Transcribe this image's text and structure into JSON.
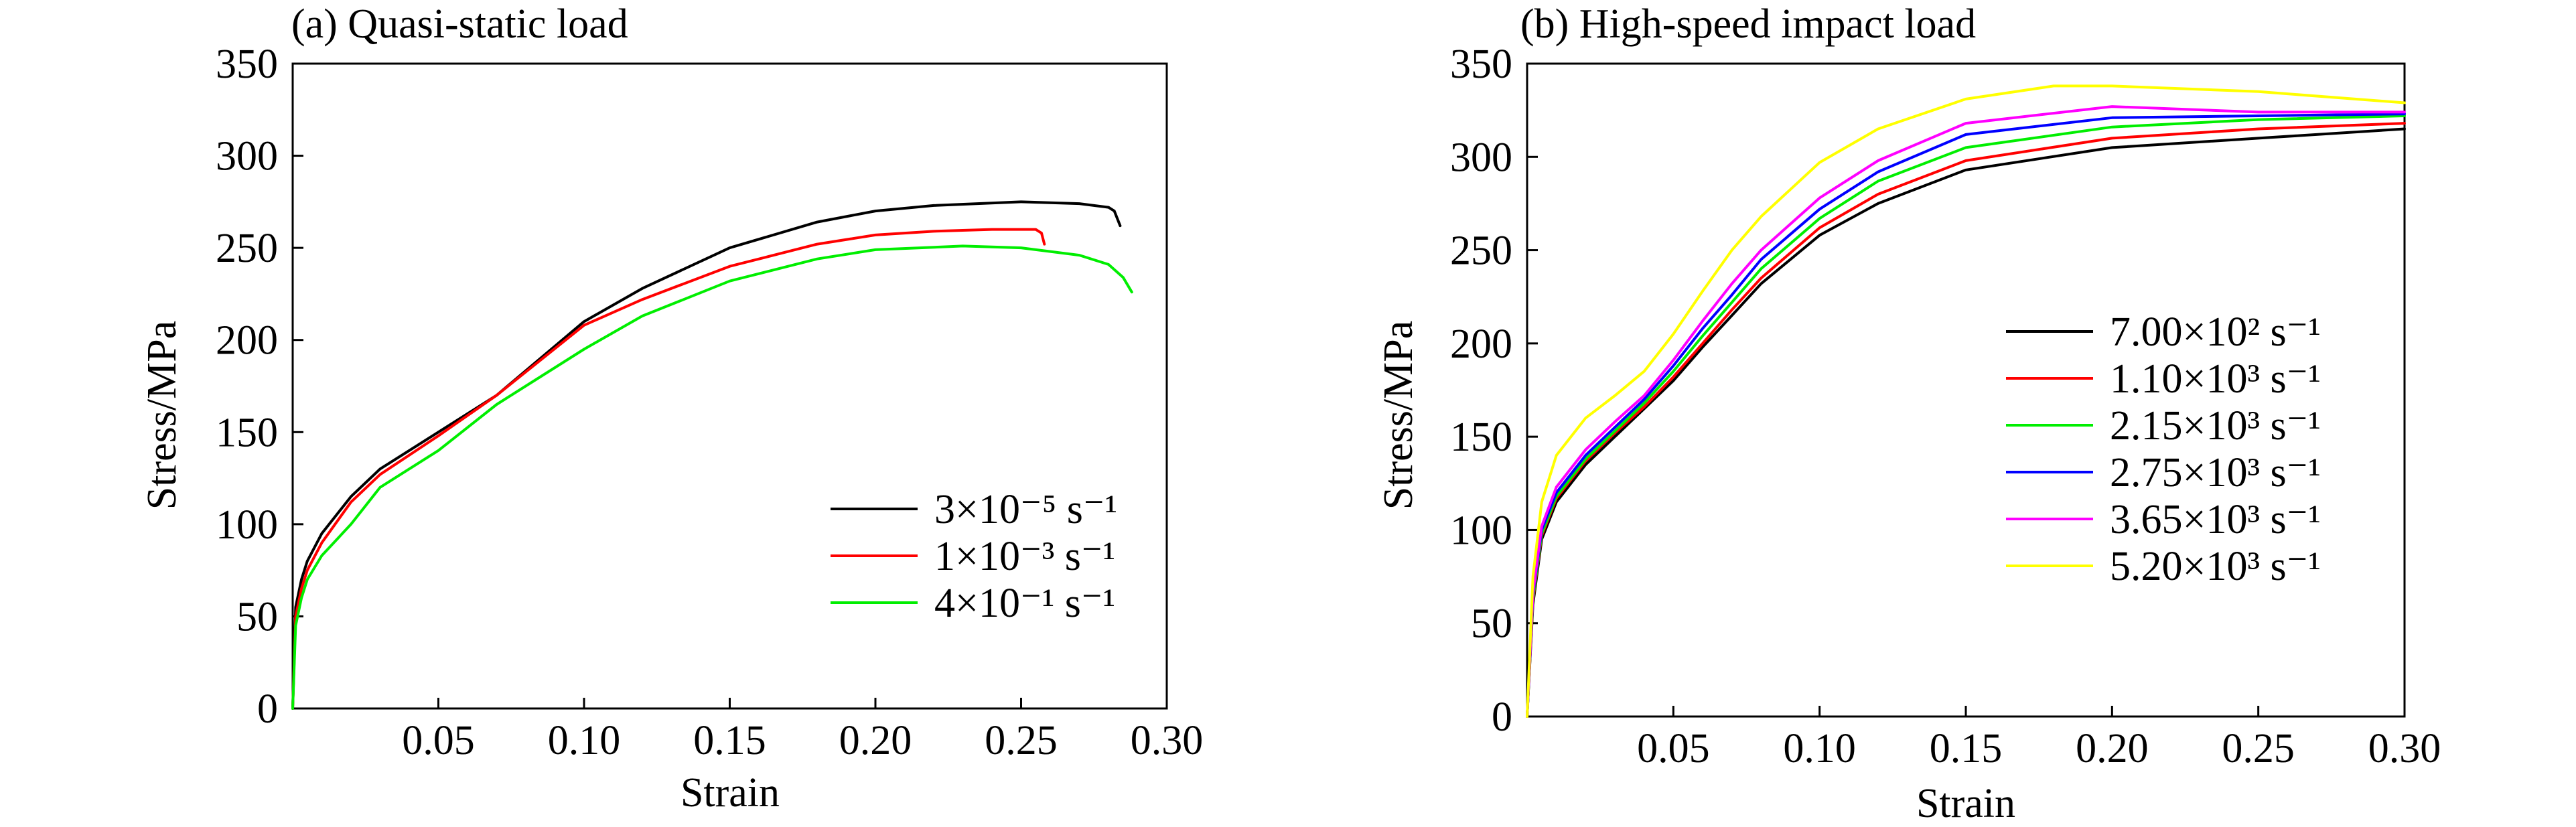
{
  "chart_data": [
    {
      "type": "line",
      "title": "(a) Quasi-static load",
      "xlabel": "Strain",
      "ylabel": "Stress/MPa",
      "xlim": [
        0,
        0.3
      ],
      "ylim": [
        0,
        350
      ],
      "xticks": [
        "0.05",
        "0.10",
        "0.15",
        "0.20",
        "0.25",
        "0.30"
      ],
      "xtick_values": [
        0.05,
        0.1,
        0.15,
        0.2,
        0.25,
        0.3
      ],
      "yticks": [
        "0",
        "50",
        "100",
        "150",
        "200",
        "250",
        "300",
        "350"
      ],
      "ytick_values": [
        0,
        50,
        100,
        150,
        200,
        250,
        300,
        350
      ],
      "grid": false,
      "legend_position": "lower-right",
      "series": [
        {
          "name": "3×10⁻⁵ s⁻¹",
          "color": "#000000",
          "x": [
            0,
            0.001,
            0.003,
            0.005,
            0.01,
            0.02,
            0.03,
            0.05,
            0.07,
            0.1,
            0.12,
            0.15,
            0.18,
            0.2,
            0.22,
            0.25,
            0.27,
            0.28,
            0.282,
            0.284
          ],
          "y": [
            0,
            55,
            70,
            80,
            95,
            115,
            130,
            150,
            170,
            210,
            228,
            250,
            264,
            270,
            273,
            275,
            274,
            272,
            270,
            262
          ]
        },
        {
          "name": "1×10⁻³ s⁻¹",
          "color": "#ff0000",
          "x": [
            0,
            0.001,
            0.003,
            0.005,
            0.01,
            0.02,
            0.03,
            0.05,
            0.07,
            0.1,
            0.12,
            0.15,
            0.18,
            0.2,
            0.22,
            0.24,
            0.255,
            0.257,
            0.258
          ],
          "y": [
            0,
            50,
            65,
            75,
            90,
            112,
            127,
            148,
            170,
            208,
            222,
            240,
            252,
            257,
            259,
            260,
            260,
            258,
            252
          ]
        },
        {
          "name": "4×10⁻¹ s⁻¹",
          "color": "#00ee00",
          "x": [
            0,
            0.001,
            0.003,
            0.005,
            0.01,
            0.02,
            0.03,
            0.05,
            0.07,
            0.1,
            0.12,
            0.15,
            0.18,
            0.2,
            0.23,
            0.25,
            0.27,
            0.28,
            0.285,
            0.288
          ],
          "y": [
            0,
            45,
            60,
            70,
            83,
            100,
            120,
            140,
            165,
            195,
            213,
            232,
            244,
            249,
            251,
            250,
            246,
            241,
            234,
            226
          ]
        }
      ]
    },
    {
      "type": "line",
      "title": "(b) High-speed impact load",
      "xlabel": "Strain",
      "ylabel": "Stress/MPa",
      "xlim": [
        0,
        0.3
      ],
      "ylim": [
        0,
        350
      ],
      "xticks": [
        "0.05",
        "0.10",
        "0.15",
        "0.20",
        "0.25",
        "0.30"
      ],
      "xtick_values": [
        0.05,
        0.1,
        0.15,
        0.2,
        0.25,
        0.3
      ],
      "yticks": [
        "0",
        "50",
        "100",
        "150",
        "200",
        "250",
        "300",
        "350"
      ],
      "ytick_values": [
        0,
        50,
        100,
        150,
        200,
        250,
        300,
        350
      ],
      "grid": false,
      "legend_position": "right",
      "series": [
        {
          "name": "7.00×10² s⁻¹",
          "color": "#000000",
          "x": [
            0,
            0.002,
            0.005,
            0.01,
            0.02,
            0.03,
            0.04,
            0.05,
            0.06,
            0.07,
            0.08,
            0.1,
            0.12,
            0.15,
            0.2,
            0.25,
            0.3
          ],
          "y": [
            0,
            60,
            95,
            115,
            135,
            150,
            165,
            180,
            198,
            215,
            232,
            258,
            275,
            293,
            305,
            310,
            315
          ]
        },
        {
          "name": "1.10×10³ s⁻¹",
          "color": "#ff0000",
          "x": [
            0,
            0.002,
            0.005,
            0.01,
            0.02,
            0.03,
            0.04,
            0.05,
            0.06,
            0.07,
            0.08,
            0.1,
            0.12,
            0.15,
            0.2,
            0.25,
            0.3
          ],
          "y": [
            0,
            62,
            97,
            117,
            137,
            152,
            166,
            182,
            200,
            218,
            235,
            262,
            280,
            298,
            310,
            315,
            318
          ]
        },
        {
          "name": "2.15×10³ s⁻¹",
          "color": "#00ee00",
          "x": [
            0,
            0.002,
            0.005,
            0.01,
            0.02,
            0.03,
            0.04,
            0.05,
            0.06,
            0.07,
            0.08,
            0.1,
            0.12,
            0.15,
            0.2,
            0.25,
            0.3
          ],
          "y": [
            0,
            63,
            98,
            118,
            138,
            153,
            168,
            185,
            204,
            222,
            240,
            267,
            287,
            305,
            316,
            320,
            322
          ]
        },
        {
          "name": "2.75×10³ s⁻¹",
          "color": "#0000ff",
          "x": [
            0,
            0.002,
            0.005,
            0.01,
            0.02,
            0.03,
            0.04,
            0.05,
            0.06,
            0.07,
            0.08,
            0.1,
            0.12,
            0.15,
            0.2,
            0.25,
            0.3
          ],
          "y": [
            0,
            65,
            100,
            120,
            140,
            155,
            170,
            188,
            208,
            226,
            245,
            272,
            292,
            312,
            321,
            322,
            323
          ]
        },
        {
          "name": "3.65×10³ s⁻¹",
          "color": "#ff00ff",
          "x": [
            0,
            0.002,
            0.005,
            0.01,
            0.02,
            0.03,
            0.04,
            0.05,
            0.06,
            0.07,
            0.08,
            0.1,
            0.12,
            0.15,
            0.2,
            0.25,
            0.3
          ],
          "y": [
            0,
            66,
            102,
            123,
            143,
            158,
            172,
            191,
            212,
            232,
            250,
            278,
            298,
            318,
            327,
            324,
            324
          ]
        },
        {
          "name": "5.20×10³ s⁻¹",
          "color": "#ffff00",
          "x": [
            0,
            0.002,
            0.005,
            0.01,
            0.02,
            0.03,
            0.04,
            0.05,
            0.06,
            0.07,
            0.08,
            0.1,
            0.12,
            0.15,
            0.18,
            0.2,
            0.25,
            0.3
          ],
          "y": [
            0,
            75,
            115,
            140,
            160,
            172,
            185,
            205,
            228,
            250,
            268,
            297,
            315,
            331,
            338,
            338,
            335,
            329
          ]
        }
      ]
    }
  ]
}
